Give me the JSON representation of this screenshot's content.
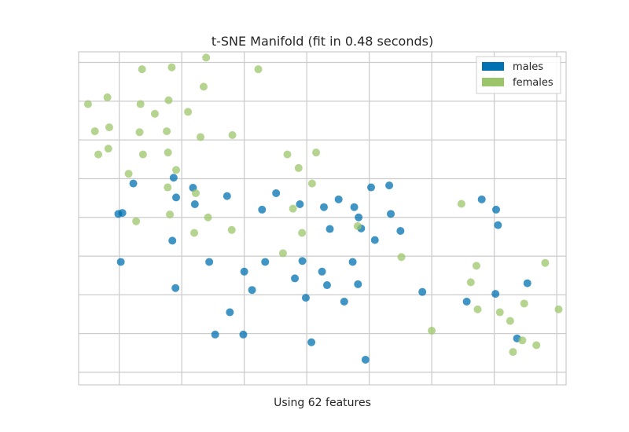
{
  "chart_data": {
    "type": "scatter",
    "title": "t-SNE Manifold (fit in 0.48 seconds)",
    "xlabel": "Using 62 features",
    "ylabel": "",
    "xlim": [
      -7.3,
      8.3
    ],
    "ylim": [
      -8.65,
      8.55
    ],
    "grid": true,
    "show_tick_labels": false,
    "legend_position": "top-right",
    "series": [
      {
        "name": "males",
        "color": "#0072b2",
        "points": [
          [
            -6.03,
            0.18
          ],
          [
            -5.95,
            -2.3
          ],
          [
            -5.9,
            0.23
          ],
          [
            -5.55,
            1.75
          ],
          [
            -4.3,
            -1.2
          ],
          [
            -4.26,
            2.05
          ],
          [
            -4.2,
            -3.65
          ],
          [
            -4.18,
            1.03
          ],
          [
            -3.64,
            1.53
          ],
          [
            -3.58,
            0.68
          ],
          [
            -3.12,
            -2.3
          ],
          [
            -2.93,
            -6.05
          ],
          [
            -2.55,
            1.1
          ],
          [
            -2.46,
            -4.9
          ],
          [
            -2.03,
            -6.05
          ],
          [
            -2.0,
            -2.8
          ],
          [
            -1.75,
            -3.75
          ],
          [
            -1.43,
            0.4
          ],
          [
            -1.33,
            -2.3
          ],
          [
            -0.98,
            1.25
          ],
          [
            -0.38,
            -3.15
          ],
          [
            -0.22,
            0.68
          ],
          [
            -0.14,
            -2.25
          ],
          [
            -0.03,
            -4.15
          ],
          [
            0.15,
            -6.45
          ],
          [
            0.49,
            -2.8
          ],
          [
            0.55,
            0.53
          ],
          [
            0.65,
            -3.5
          ],
          [
            0.74,
            -0.6
          ],
          [
            1.02,
            0.93
          ],
          [
            1.2,
            -4.35
          ],
          [
            1.47,
            -2.3
          ],
          [
            1.52,
            0.53
          ],
          [
            1.64,
            -3.45
          ],
          [
            1.66,
            0.0
          ],
          [
            1.74,
            -0.57
          ],
          [
            1.88,
            -7.35
          ],
          [
            2.06,
            1.55
          ],
          [
            2.18,
            -1.17
          ],
          [
            2.64,
            1.65
          ],
          [
            2.69,
            0.18
          ],
          [
            3.0,
            -0.7
          ],
          [
            3.7,
            -3.85
          ],
          [
            5.12,
            -4.35
          ],
          [
            5.6,
            0.93
          ],
          [
            6.04,
            -3.95
          ],
          [
            6.06,
            0.4
          ],
          [
            6.12,
            -0.4
          ],
          [
            6.73,
            -6.25
          ],
          [
            7.06,
            -3.4
          ]
        ]
      },
      {
        "name": "females",
        "color": "#9bc56a",
        "points": [
          [
            -7.0,
            5.85
          ],
          [
            -6.78,
            4.45
          ],
          [
            -6.67,
            3.25
          ],
          [
            -6.38,
            6.2
          ],
          [
            -6.35,
            3.55
          ],
          [
            -6.32,
            4.65
          ],
          [
            -5.7,
            2.25
          ],
          [
            -5.46,
            -0.2
          ],
          [
            -5.35,
            4.4
          ],
          [
            -5.32,
            5.85
          ],
          [
            -5.27,
            7.65
          ],
          [
            -5.24,
            3.25
          ],
          [
            -4.86,
            5.35
          ],
          [
            -4.48,
            4.45
          ],
          [
            -4.45,
            1.55
          ],
          [
            -4.44,
            3.35
          ],
          [
            -4.42,
            6.05
          ],
          [
            -4.38,
            0.15
          ],
          [
            -4.32,
            7.75
          ],
          [
            -4.18,
            2.45
          ],
          [
            -3.8,
            5.45
          ],
          [
            -3.6,
            -0.8
          ],
          [
            -3.55,
            1.25
          ],
          [
            -3.4,
            4.15
          ],
          [
            -3.3,
            6.75
          ],
          [
            -3.22,
            8.25
          ],
          [
            -3.16,
            0.0
          ],
          [
            -2.4,
            -0.65
          ],
          [
            -2.38,
            4.25
          ],
          [
            -1.55,
            7.65
          ],
          [
            -0.76,
            -1.85
          ],
          [
            -0.62,
            3.25
          ],
          [
            -0.44,
            0.45
          ],
          [
            -0.26,
            2.55
          ],
          [
            -0.15,
            -0.8
          ],
          [
            0.17,
            1.75
          ],
          [
            0.3,
            3.35
          ],
          [
            1.63,
            -0.45
          ],
          [
            3.03,
            -2.05
          ],
          [
            4.0,
            -5.85
          ],
          [
            4.95,
            0.7
          ],
          [
            5.25,
            -3.35
          ],
          [
            5.43,
            -2.5
          ],
          [
            5.47,
            -4.75
          ],
          [
            6.18,
            -4.9
          ],
          [
            6.51,
            -5.35
          ],
          [
            6.6,
            -6.95
          ],
          [
            6.9,
            -6.35
          ],
          [
            6.96,
            -4.45
          ],
          [
            7.35,
            -6.6
          ],
          [
            7.63,
            -2.35
          ],
          [
            8.06,
            -4.75
          ]
        ]
      }
    ]
  }
}
